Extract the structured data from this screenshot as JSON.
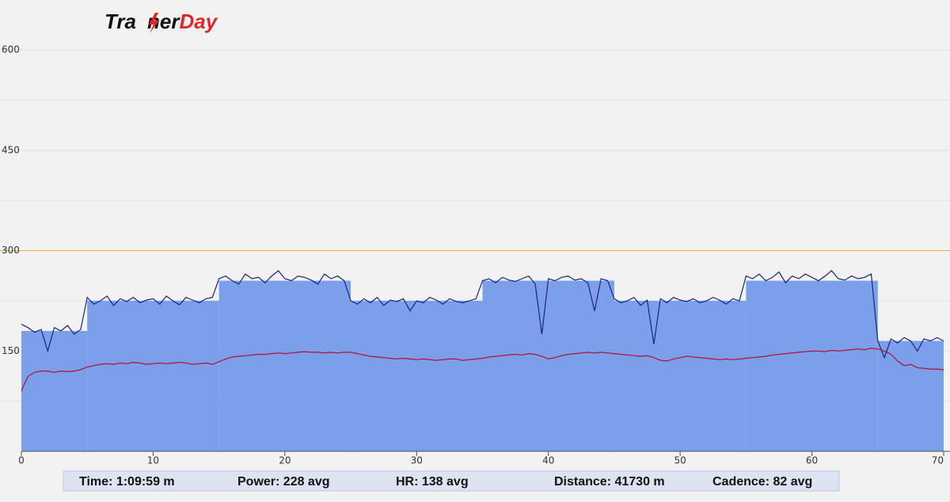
{
  "chart_data": {
    "type": "workout",
    "logo": [
      "Tra",
      "ner",
      "Day"
    ],
    "xlim": [
      0,
      70
    ],
    "xticks": [
      0,
      10,
      20,
      30,
      40,
      50,
      60,
      70
    ],
    "ylim": [
      0,
      600
    ],
    "yticks": [
      150,
      300,
      450,
      600
    ],
    "ygrid_minor": [
      75,
      225,
      375,
      525
    ],
    "grid": true,
    "ftp": 300,
    "ftp_color": "#f0b03c",
    "target_bins": [
      0,
      5,
      15,
      25,
      35,
      45,
      55,
      65,
      70
    ],
    "target_values": [
      180,
      225,
      255,
      225,
      255,
      225,
      255,
      165
    ],
    "target_color": "#7b9fe8",
    "x": [
      0,
      0.5,
      1,
      1.5,
      2,
      2.5,
      3,
      3.5,
      4,
      4.5,
      5,
      5.5,
      6,
      6.5,
      7,
      7.5,
      8,
      8.5,
      9,
      9.5,
      10,
      10.5,
      11,
      11.5,
      12,
      12.5,
      13,
      13.5,
      14,
      14.5,
      15,
      15.5,
      16,
      16.5,
      17,
      17.5,
      18,
      18.5,
      19,
      19.5,
      20,
      20.5,
      21,
      21.5,
      22,
      22.5,
      23,
      23.5,
      24,
      24.5,
      25,
      25.5,
      26,
      26.5,
      27,
      27.5,
      28,
      28.5,
      29,
      29.5,
      30,
      30.5,
      31,
      31.5,
      32,
      32.5,
      33,
      33.5,
      34,
      34.5,
      35,
      35.5,
      36,
      36.5,
      37,
      37.5,
      38,
      38.5,
      39,
      39.5,
      40,
      40.5,
      41,
      41.5,
      42,
      42.5,
      43,
      43.5,
      44,
      44.5,
      45,
      45.5,
      46,
      46.5,
      47,
      47.5,
      48,
      48.5,
      49,
      49.5,
      50,
      50.5,
      51,
      51.5,
      52,
      52.5,
      53,
      53.5,
      54,
      54.5,
      55,
      55.5,
      56,
      56.5,
      57,
      57.5,
      58,
      58.5,
      59,
      59.5,
      60,
      60.5,
      61,
      61.5,
      62,
      62.5,
      63,
      63.5,
      64,
      64.5,
      65,
      65.5,
      66,
      66.5,
      67,
      67.5,
      68,
      68.5,
      69,
      69.5,
      70
    ],
    "series": [
      {
        "color": "#1a237e",
        "values": [
          190,
          185,
          178,
          182,
          150,
          185,
          180,
          188,
          175,
          182,
          230,
          220,
          225,
          232,
          218,
          228,
          224,
          230,
          222,
          226,
          228,
          220,
          232,
          225,
          219,
          230,
          226,
          222,
          228,
          230,
          258,
          262,
          255,
          250,
          265,
          258,
          260,
          252,
          262,
          270,
          258,
          255,
          262,
          260,
          256,
          250,
          265,
          258,
          262,
          255,
          225,
          220,
          228,
          222,
          230,
          218,
          226,
          224,
          228,
          210,
          225,
          222,
          230,
          226,
          220,
          228,
          224,
          222,
          225,
          228,
          255,
          258,
          252,
          260,
          256,
          254,
          258,
          262,
          250,
          175,
          258,
          255,
          260,
          262,
          256,
          258,
          252,
          210,
          258,
          255,
          228,
          222,
          225,
          230,
          218,
          226,
          160,
          228,
          222,
          230,
          226,
          224,
          228,
          222,
          225,
          230,
          226,
          220,
          228,
          225,
          262,
          258,
          265,
          255,
          260,
          268,
          252,
          262,
          258,
          265,
          260,
          255,
          262,
          270,
          258,
          256,
          262,
          258,
          260,
          265,
          165,
          140,
          168,
          162,
          170,
          165,
          150,
          168,
          165,
          170,
          165
        ]
      },
      {
        "color": "#b0103a",
        "values": [
          90,
          112,
          118,
          120,
          120,
          118,
          120,
          119,
          120,
          122,
          126,
          128,
          130,
          131,
          130,
          132,
          131,
          133,
          132,
          130,
          131,
          132,
          131,
          132,
          133,
          132,
          130,
          131,
          132,
          130,
          134,
          138,
          141,
          142,
          143,
          144,
          145,
          145,
          146,
          147,
          146,
          147,
          148,
          149,
          148,
          148,
          147,
          148,
          147,
          148,
          148,
          146,
          144,
          142,
          141,
          140,
          139,
          138,
          139,
          138,
          137,
          138,
          137,
          136,
          137,
          138,
          138,
          136,
          137,
          138,
          139,
          141,
          142,
          143,
          144,
          145,
          144,
          146,
          145,
          142,
          138,
          140,
          143,
          145,
          146,
          147,
          148,
          147,
          148,
          147,
          146,
          145,
          144,
          143,
          142,
          143,
          140,
          136,
          135,
          138,
          140,
          142,
          141,
          140,
          139,
          138,
          137,
          138,
          137,
          138,
          139,
          140,
          141,
          142,
          144,
          145,
          146,
          147,
          148,
          149,
          150,
          150,
          149,
          151,
          150,
          151,
          152,
          153,
          152,
          154,
          153,
          150,
          145,
          135,
          128,
          130,
          125,
          124,
          123,
          123,
          122
        ]
      }
    ],
    "summary": [
      "Time: 1:09:59 m",
      "Power: 228 avg",
      "HR: 138 avg",
      "Distance: 41730 m",
      "Cadence: 82 avg"
    ]
  }
}
